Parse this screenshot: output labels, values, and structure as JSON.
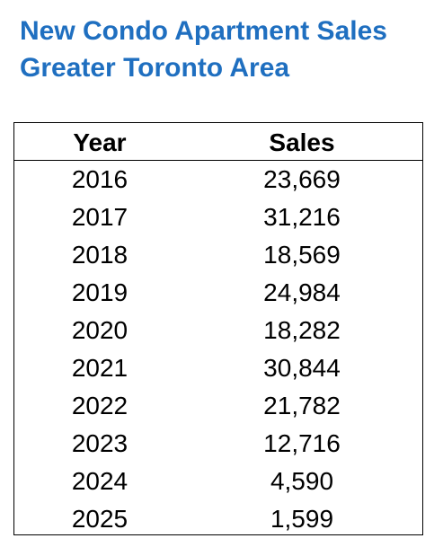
{
  "title": {
    "line1": "New Condo Apartment Sales",
    "line2": "Greater Toronto Area"
  },
  "colors": {
    "title": "#1f6fc0",
    "text": "#000000",
    "border": "#000000",
    "background": "#ffffff"
  },
  "chart_data": {
    "type": "table",
    "title": "New Condo Apartment Sales Greater Toronto Area",
    "columns": [
      "Year",
      "Sales"
    ],
    "rows": [
      [
        "2016",
        "23,669"
      ],
      [
        "2017",
        "31,216"
      ],
      [
        "2018",
        "18,569"
      ],
      [
        "2019",
        "24,984"
      ],
      [
        "2020",
        "18,282"
      ],
      [
        "2021",
        "30,844"
      ],
      [
        "2022",
        "21,782"
      ],
      [
        "2023",
        "12,716"
      ],
      [
        "2024",
        "4,590"
      ],
      [
        "2025",
        "1,599"
      ]
    ]
  }
}
